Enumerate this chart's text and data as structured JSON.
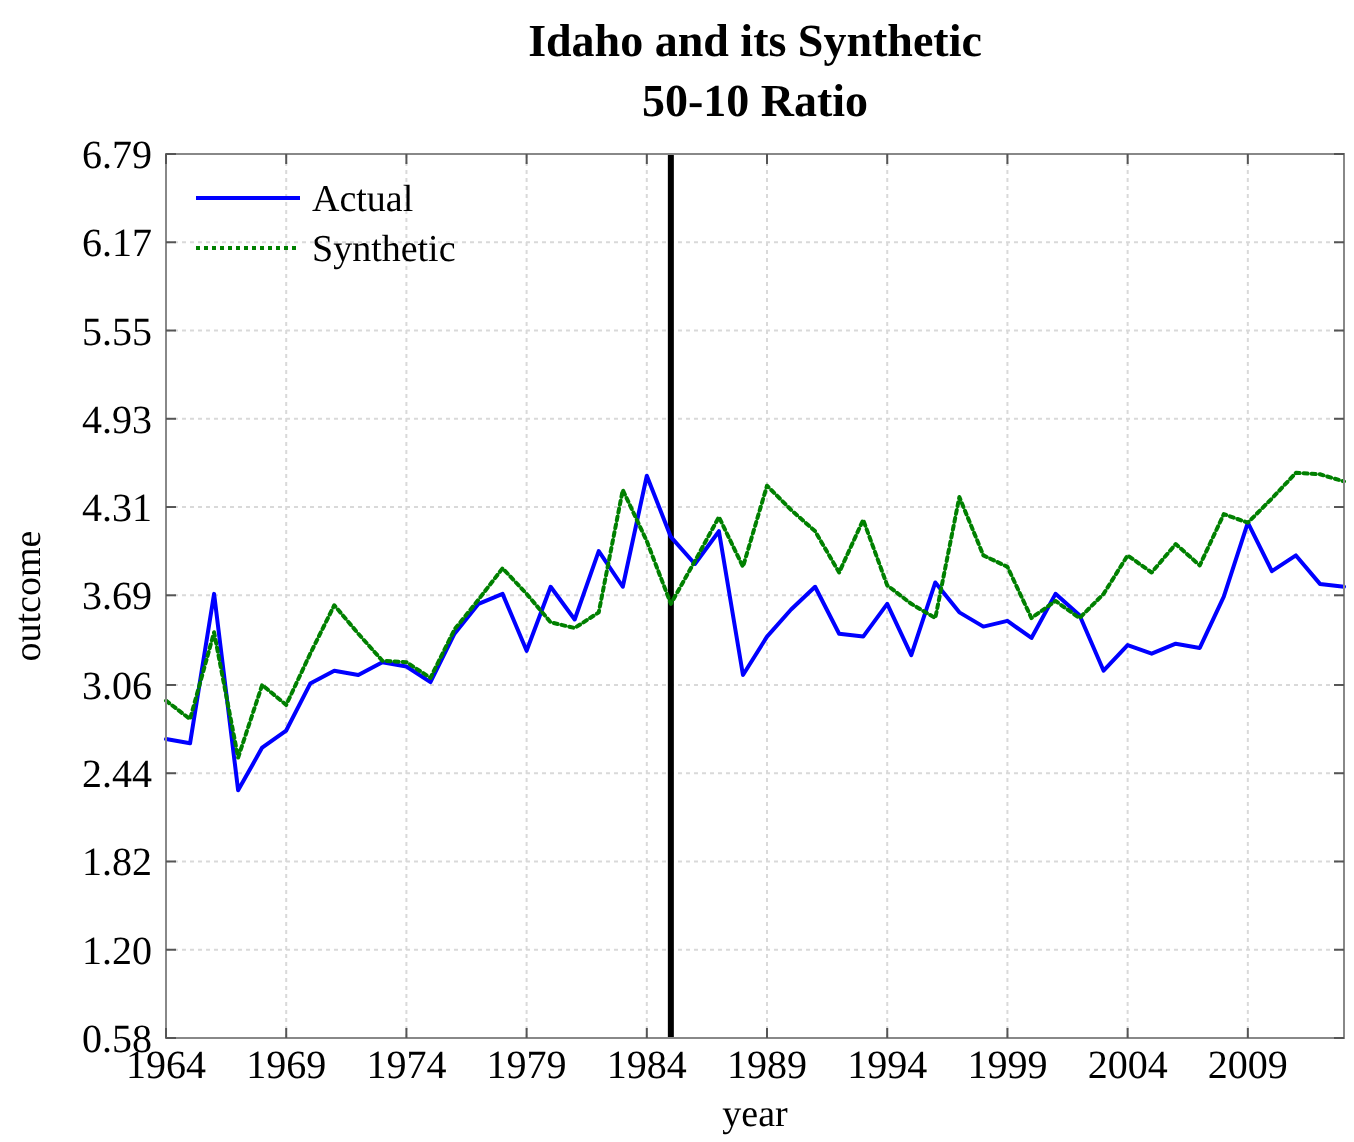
{
  "chart_data": {
    "type": "line",
    "title": "Idaho and its Synthetic",
    "subtitle": "50-10 Ratio",
    "xlabel": "year",
    "ylabel": "outcome",
    "x": [
      1964,
      1965,
      1966,
      1967,
      1968,
      1969,
      1970,
      1971,
      1972,
      1973,
      1974,
      1975,
      1976,
      1977,
      1978,
      1979,
      1980,
      1981,
      1982,
      1983,
      1984,
      1985,
      1986,
      1987,
      1988,
      1989,
      1990,
      1991,
      1992,
      1993,
      1994,
      1995,
      1996,
      1997,
      1998,
      1999,
      2000,
      2001,
      2002,
      2003,
      2004,
      2005,
      2006,
      2007,
      2008,
      2009,
      2010,
      2011,
      2012,
      2013
    ],
    "series": [
      {
        "name": "Actual",
        "color": "#0000ff",
        "line_style": "solid",
        "values": [
          2.68,
          2.65,
          3.7,
          2.32,
          2.62,
          2.74,
          3.07,
          3.16,
          3.13,
          3.22,
          3.19,
          3.08,
          3.42,
          3.63,
          3.7,
          3.3,
          3.75,
          3.52,
          4.0,
          3.75,
          4.53,
          4.1,
          3.91,
          4.14,
          3.13,
          3.4,
          3.59,
          3.75,
          3.42,
          3.4,
          3.63,
          3.27,
          3.78,
          3.57,
          3.47,
          3.51,
          3.39,
          3.7,
          3.55,
          3.16,
          3.34,
          3.28,
          3.35,
          3.32,
          3.68,
          4.2,
          3.86,
          3.97,
          3.77,
          3.75
        ]
      },
      {
        "name": "Synthetic",
        "color": "#008000",
        "line_style": "dotted",
        "values": [
          2.95,
          2.82,
          3.43,
          2.55,
          3.06,
          2.92,
          3.28,
          3.62,
          3.42,
          3.23,
          3.22,
          3.11,
          3.45,
          3.66,
          3.88,
          3.7,
          3.5,
          3.46,
          3.57,
          4.43,
          4.07,
          3.63,
          3.93,
          4.24,
          3.89,
          4.46,
          4.29,
          4.14,
          3.85,
          4.22,
          3.76,
          3.63,
          3.53,
          4.38,
          3.97,
          3.89,
          3.53,
          3.65,
          3.53,
          3.7,
          3.97,
          3.85,
          4.05,
          3.9,
          4.26,
          4.2,
          4.37,
          4.55,
          4.54,
          4.49
        ]
      }
    ],
    "xlim": [
      1964,
      2013
    ],
    "xticks": [
      1964,
      1969,
      1974,
      1979,
      1984,
      1989,
      1994,
      1999,
      2004,
      2009
    ],
    "ylim": [
      0.58,
      6.79
    ],
    "yticks": [
      0.58,
      {
        "value": 1.2,
        "label": "1.20"
      },
      1.82,
      2.44,
      3.06,
      3.69,
      4.31,
      4.93,
      5.55,
      6.17,
      6.79
    ],
    "ref_lines": [
      {
        "axis": "x",
        "value": 1985,
        "color": "#000000"
      }
    ],
    "grid": true,
    "legend": "top left"
  }
}
